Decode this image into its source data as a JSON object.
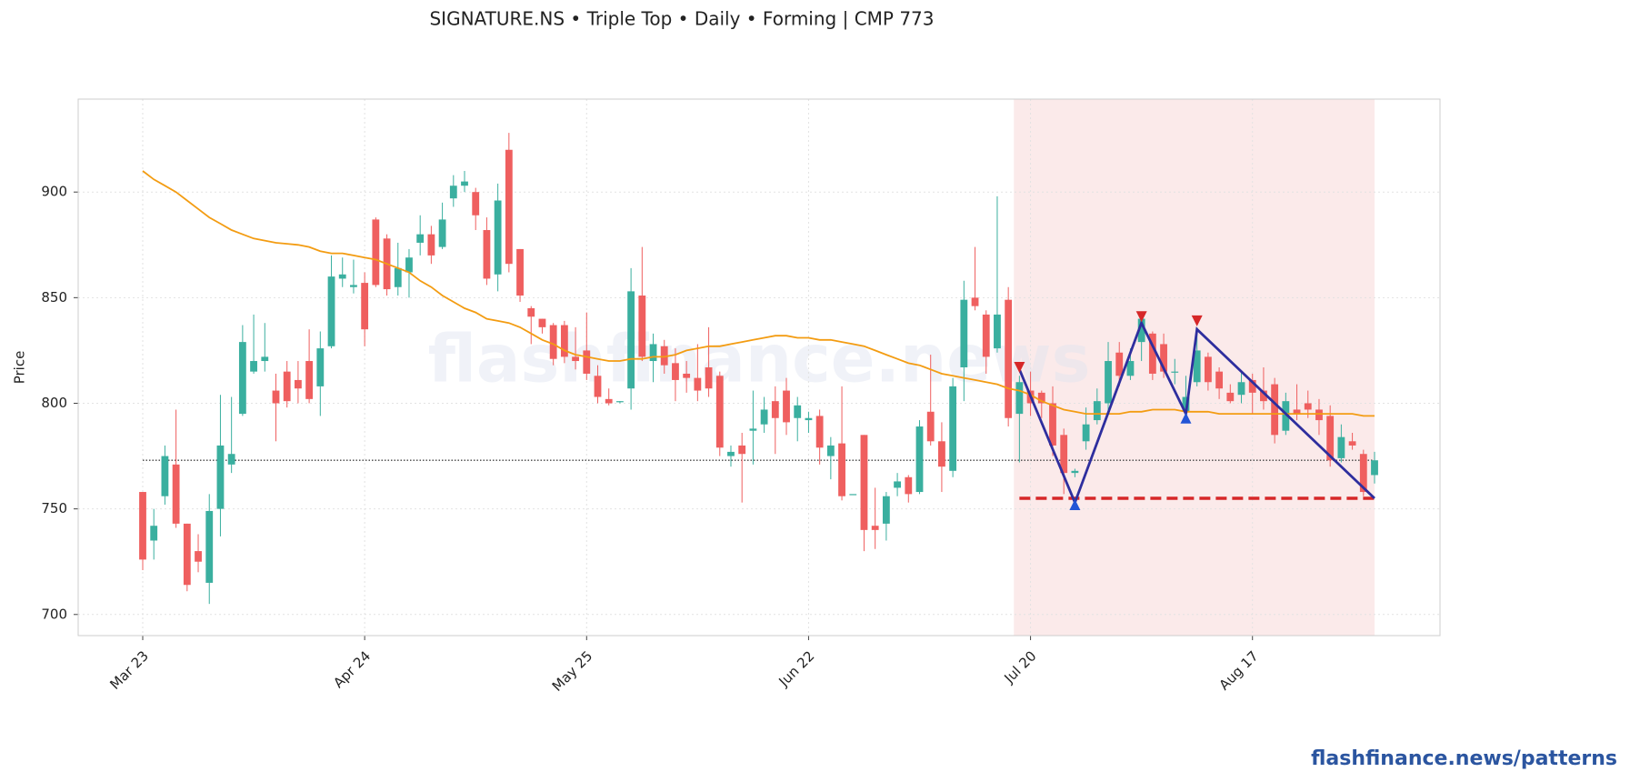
{
  "chart_data": {
    "type": "candlestick",
    "title": "SIGNATURE.NS  •  Triple Top  •  Daily  •  Forming  |  CMP 773",
    "y_label": "Price",
    "watermark": "flashfinance.news",
    "footer": "flashfinance.news/patterns",
    "categories": [
      "Mar 23",
      null,
      null,
      null,
      null,
      null,
      null,
      null,
      null,
      null,
      null,
      null,
      null,
      null,
      null,
      null,
      null,
      null,
      null,
      null,
      "Apr 24",
      null,
      null,
      null,
      null,
      null,
      null,
      null,
      null,
      null,
      null,
      null,
      null,
      null,
      null,
      null,
      null,
      null,
      null,
      null,
      "May 25",
      null,
      null,
      null,
      null,
      null,
      null,
      null,
      null,
      null,
      null,
      null,
      null,
      null,
      null,
      null,
      null,
      null,
      null,
      null,
      "Jun 22",
      null,
      null,
      null,
      null,
      null,
      null,
      null,
      null,
      null,
      null,
      null,
      null,
      null,
      null,
      null,
      null,
      null,
      null,
      null,
      "Jul 20",
      null,
      null,
      null,
      null,
      null,
      null,
      null,
      null,
      null,
      null,
      null,
      null,
      null,
      null,
      null,
      null,
      null,
      null,
      null,
      "Aug 17",
      null,
      null,
      null,
      null,
      null,
      null,
      null,
      null,
      null,
      null,
      null
    ],
    "open": [
      758,
      735,
      756,
      771,
      743,
      730,
      715,
      750,
      771,
      795,
      815,
      820,
      806,
      815,
      811,
      820,
      808,
      827,
      859,
      855,
      857,
      887,
      878,
      855,
      862,
      876,
      880,
      874,
      897,
      903,
      900,
      882,
      861,
      920,
      873,
      845,
      840,
      837,
      837,
      822,
      825,
      813,
      802,
      801,
      807,
      851,
      820,
      827,
      819,
      814,
      812,
      817,
      813,
      775,
      780,
      787,
      790,
      801,
      806,
      793,
      792,
      794,
      775,
      781,
      757,
      785,
      742,
      743,
      760,
      765,
      758,
      796,
      782,
      768,
      817,
      850,
      842,
      826,
      849,
      795,
      806,
      805,
      800,
      785,
      767,
      782,
      792,
      800,
      824,
      813,
      829,
      833,
      828,
      815,
      796,
      810,
      822,
      815,
      805,
      804,
      811,
      806,
      809,
      787,
      797,
      800,
      797,
      794,
      774,
      782,
      776,
      766
    ],
    "high": [
      758,
      750,
      780,
      797,
      743,
      738,
      757,
      804,
      803,
      837,
      842,
      838,
      814,
      820,
      820,
      835,
      834,
      870,
      869,
      868,
      862,
      888,
      880,
      876,
      873,
      889,
      884,
      895,
      908,
      910,
      902,
      888,
      904,
      928,
      873,
      846,
      840,
      838,
      839,
      836,
      843,
      818,
      807,
      801,
      864,
      874,
      833,
      830,
      826,
      820,
      828,
      836,
      815,
      780,
      786,
      806,
      803,
      808,
      812,
      803,
      796,
      797,
      784,
      808,
      757,
      785,
      760,
      758,
      767,
      766,
      792,
      823,
      791,
      812,
      858,
      874,
      844,
      898,
      855,
      813,
      815,
      806,
      808,
      788,
      769,
      798,
      807,
      829,
      829,
      826,
      842,
      834,
      833,
      821,
      813,
      836,
      824,
      817,
      809,
      815,
      814,
      817,
      812,
      805,
      809,
      806,
      802,
      799,
      790,
      786,
      778,
      777
    ],
    "low": [
      721,
      726,
      752,
      741,
      711,
      720,
      705,
      737,
      767,
      794,
      814,
      815,
      782,
      798,
      800,
      800,
      794,
      826,
      855,
      852,
      827,
      855,
      851,
      851,
      850,
      870,
      866,
      873,
      893,
      900,
      882,
      856,
      853,
      862,
      848,
      828,
      833,
      818,
      819,
      816,
      811,
      800,
      799,
      800,
      797,
      820,
      810,
      814,
      801,
      805,
      801,
      803,
      775,
      770,
      753,
      771,
      786,
      776,
      785,
      782,
      786,
      771,
      764,
      754,
      757,
      730,
      731,
      735,
      756,
      753,
      757,
      780,
      758,
      765,
      801,
      844,
      814,
      824,
      789,
      772,
      794,
      793,
      775,
      757,
      765,
      778,
      790,
      795,
      808,
      811,
      820,
      811,
      812,
      809,
      793,
      808,
      806,
      802,
      800,
      800,
      795,
      797,
      781,
      785,
      792,
      793,
      785,
      770,
      772,
      778,
      756,
      762
    ],
    "close": [
      726,
      742,
      775,
      743,
      714,
      725,
      749,
      780,
      776,
      829,
      820,
      822,
      800,
      801,
      807,
      802,
      826,
      860,
      861,
      856,
      835,
      856,
      854,
      864,
      869,
      880,
      870,
      887,
      903,
      905,
      889,
      859,
      896,
      866,
      851,
      841,
      836,
      821,
      822,
      820,
      814,
      803,
      800,
      801,
      853,
      822,
      828,
      818,
      811,
      812,
      806,
      807,
      779,
      777,
      776,
      788,
      797,
      793,
      791,
      799,
      793,
      779,
      780,
      756,
      757,
      740,
      740,
      756,
      763,
      757,
      789,
      782,
      770,
      808,
      849,
      846,
      822,
      842,
      793,
      810,
      800,
      800,
      780,
      767,
      768,
      790,
      801,
      820,
      813,
      820,
      840,
      814,
      815,
      815,
      803,
      825,
      810,
      807,
      801,
      810,
      805,
      801,
      785,
      801,
      795,
      797,
      792,
      773,
      784,
      780,
      758,
      773
    ],
    "up_color": "#3aaf9f",
    "down_color": "#ef5f5f",
    "sma": {
      "color": "#f39c12",
      "values": [
        910,
        906,
        903,
        900,
        896,
        892,
        888,
        885,
        882,
        880,
        878,
        877,
        876,
        875.5,
        875,
        874,
        872,
        871,
        871,
        870,
        869,
        868,
        866,
        864,
        862,
        858,
        855,
        851,
        848,
        845,
        843,
        840,
        839,
        838,
        836,
        833,
        830,
        828,
        825,
        823,
        822,
        821,
        820,
        820,
        821,
        821,
        822,
        822,
        823,
        825,
        826,
        827,
        827,
        828,
        829,
        830,
        831,
        832,
        832,
        831,
        831,
        830,
        830,
        829,
        828,
        827,
        825,
        823,
        821,
        819,
        818,
        816,
        814,
        813,
        812,
        811,
        810,
        809,
        807,
        806,
        804,
        801,
        799,
        797,
        796,
        795,
        795,
        795,
        795,
        796,
        796,
        797,
        797,
        797,
        796,
        796,
        796,
        795,
        795,
        795,
        795,
        795,
        795,
        795,
        795,
        795,
        795,
        795,
        795,
        795,
        794,
        794
      ]
    },
    "cmp_line": {
      "value": 773,
      "color": "#444444"
    },
    "neckline": {
      "value": 755,
      "from": 79,
      "to": 111,
      "color": "#d62728"
    },
    "highlight": {
      "from": 79,
      "to": 111,
      "color": "#fbeaea"
    },
    "pattern": {
      "color": "#2e2e9e",
      "x": [
        79,
        84,
        90,
        94,
        95,
        111
      ],
      "y": [
        816,
        753,
        838,
        795,
        835,
        755
      ]
    },
    "peaks": {
      "color": "#d62728",
      "x": [
        79,
        90,
        95
      ],
      "y": [
        817,
        841,
        839
      ]
    },
    "troughs": {
      "color": "#2355d6",
      "x": [
        84,
        94
      ],
      "y": [
        752,
        793
      ]
    },
    "ylim": [
      690,
      944
    ],
    "yticks": [
      700,
      750,
      800,
      850,
      900
    ],
    "grid": true
  }
}
